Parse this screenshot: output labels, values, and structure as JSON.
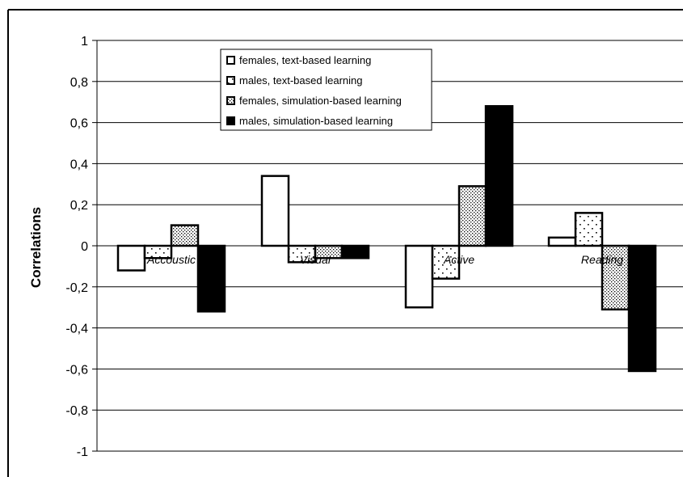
{
  "chart_data": {
    "type": "bar",
    "title": "",
    "xlabel": "",
    "ylabel": "Correlations",
    "ylim": [
      -1,
      1
    ],
    "yticks": [
      1,
      0.8,
      0.6,
      0.4,
      0.2,
      0,
      -0.2,
      -0.4,
      -0.6,
      -0.8,
      -1
    ],
    "ytick_labels": [
      "1",
      "0,8",
      "0,6",
      "0,4",
      "0,2",
      "0",
      "-0,2",
      "-0,4",
      "-0,6",
      "-0,8",
      "-1"
    ],
    "grid": "horizontal",
    "legend_position": "top-center",
    "categories": [
      "Accoustic",
      "Visual",
      "Active",
      "Reading"
    ],
    "series": [
      {
        "name": "females, text-based learning",
        "values": [
          -0.12,
          0.34,
          -0.3,
          0.04
        ],
        "pattern": "white"
      },
      {
        "name": "males, text-based learning",
        "values": [
          -0.06,
          -0.08,
          -0.16,
          0.16
        ],
        "pattern": "sparse-dots"
      },
      {
        "name": "females, simulation-based learning",
        "values": [
          0.1,
          -0.06,
          0.29,
          -0.31
        ],
        "pattern": "dense-dots"
      },
      {
        "name": "males, simulation-based learning",
        "values": [
          -0.32,
          -0.06,
          0.68,
          -0.61
        ],
        "pattern": "black"
      }
    ]
  }
}
